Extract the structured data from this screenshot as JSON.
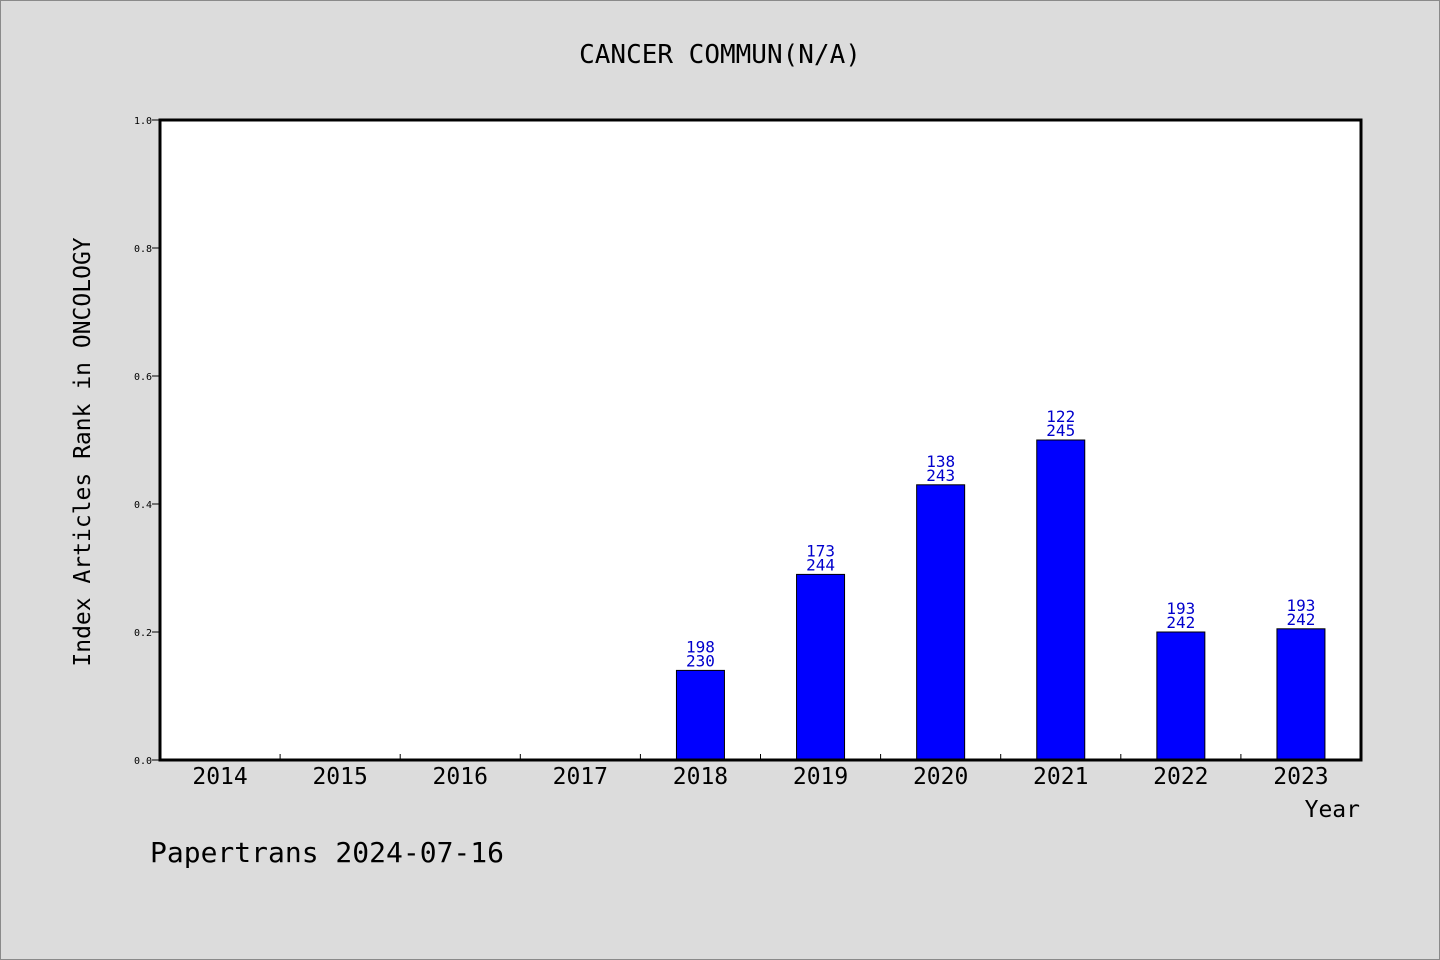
{
  "chart_data": {
    "type": "bar",
    "title": "CANCER COMMUN(N/A)",
    "xlabel": "Year",
    "ylabel": "Index Articles Rank in ONCOLOGY",
    "ylim": [
      0,
      1.0
    ],
    "yticks": [
      "0.0",
      "0.2",
      "0.4",
      "0.6",
      "0.8",
      "1.0"
    ],
    "categories": [
      "2014",
      "2015",
      "2016",
      "2017",
      "2018",
      "2019",
      "2020",
      "2021",
      "2022",
      "2023"
    ],
    "values": [
      null,
      null,
      null,
      null,
      0.14,
      0.29,
      0.43,
      0.5,
      0.2,
      0.205
    ],
    "rank": [
      null,
      null,
      null,
      null,
      "198",
      "173",
      "138",
      "122",
      "193",
      "193"
    ],
    "total": [
      null,
      null,
      null,
      null,
      "230",
      "244",
      "243",
      "245",
      "242",
      "242"
    ],
    "grid": false,
    "bar_color": "#0000ff",
    "label_color": "#0000cc"
  },
  "footer": {
    "text": "Papertrans 2024-07-16"
  },
  "colors": {
    "background": "#dcdcdc",
    "plot_background": "#ffffff",
    "axis": "#000000"
  }
}
